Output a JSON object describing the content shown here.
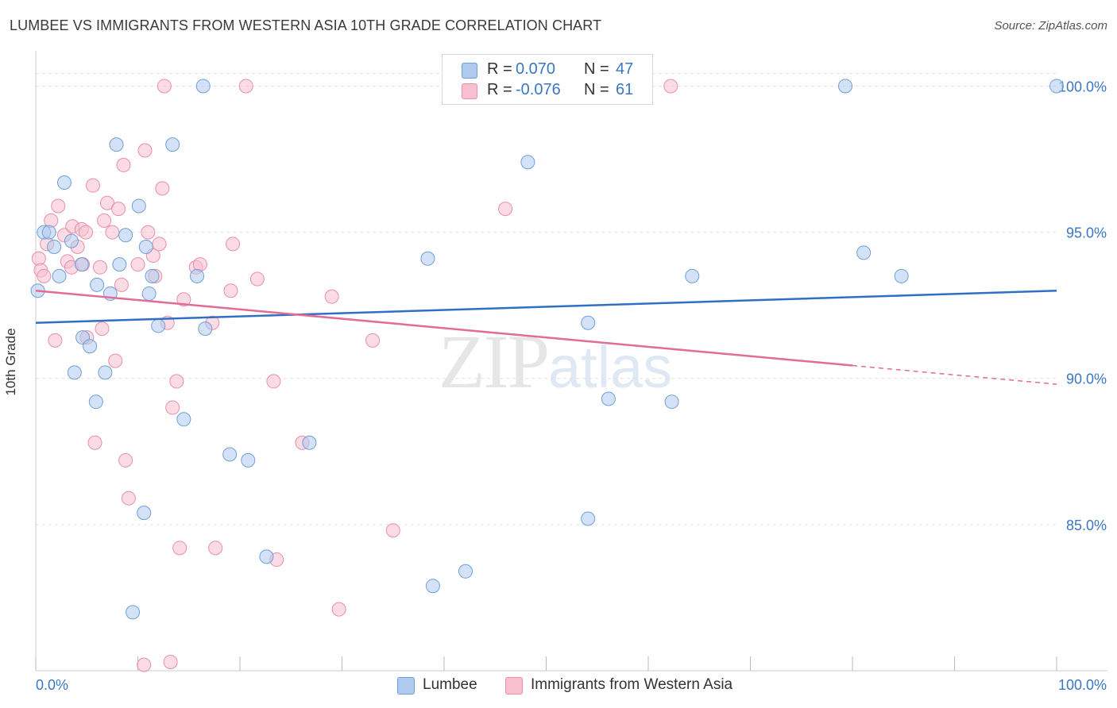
{
  "title": "LUMBEE VS IMMIGRANTS FROM WESTERN ASIA 10TH GRADE CORRELATION CHART",
  "source": "Source: ZipAtlas.com",
  "watermark": {
    "zip": "ZIP",
    "atlas": "atlas"
  },
  "legend": {
    "rows": [
      {
        "r_label": "R =",
        "r_value": "0.070",
        "n_label": "N =",
        "n_value": "47"
      },
      {
        "r_label": "R =",
        "r_value": "-0.076",
        "n_label": "N =",
        "n_value": "61"
      }
    ]
  },
  "bottom_legend": {
    "series_a": "Lumbee",
    "series_b": "Immigrants from Western Asia"
  },
  "colors": {
    "lumbee_fill": "#aecbef",
    "lumbee_stroke": "#6f9fd8",
    "lumbee_line": "#2f6fc4",
    "western_asia_fill": "#f7bfd0",
    "western_asia_stroke": "#ea8eaa",
    "western_asia_line": "#e36b95",
    "tick_label": "#3a76c4",
    "grid": "#e2e2e2"
  },
  "chart_data": {
    "type": "scatter",
    "title": "LUMBEE VS IMMIGRANTS FROM WESTERN ASIA 10TH GRADE CORRELATION CHART",
    "xlabel": "",
    "ylabel": "10th Grade",
    "xlim": [
      0,
      100
    ],
    "ylim": [
      80.0,
      100.8
    ],
    "x_tick_labels": [
      "0.0%",
      "100.0%"
    ],
    "y_ticks": [
      85,
      90,
      95,
      100
    ],
    "y_tick_labels": [
      "85.0%",
      "90.0%",
      "95.0%",
      "100.0%"
    ],
    "grid": true,
    "legend_position": "top-center",
    "series": [
      {
        "name": "Lumbee",
        "r": 0.07,
        "n": 47,
        "trend": {
          "x": [
            0,
            100
          ],
          "y": [
            91.9,
            93.0
          ],
          "dashed_from": null
        },
        "points": [
          [
            0.2,
            93.0
          ],
          [
            0.8,
            95.0
          ],
          [
            1.3,
            95.0
          ],
          [
            1.8,
            94.5
          ],
          [
            2.3,
            93.5
          ],
          [
            2.8,
            96.7
          ],
          [
            3.5,
            94.7
          ],
          [
            3.8,
            90.2
          ],
          [
            4.5,
            93.9
          ],
          [
            4.6,
            91.4
          ],
          [
            5.3,
            91.1
          ],
          [
            5.9,
            89.2
          ],
          [
            6.0,
            93.2
          ],
          [
            6.8,
            90.2
          ],
          [
            7.3,
            92.9
          ],
          [
            7.9,
            98.0
          ],
          [
            8.2,
            93.9
          ],
          [
            8.8,
            94.9
          ],
          [
            9.5,
            82.0
          ],
          [
            10.1,
            95.9
          ],
          [
            10.6,
            85.4
          ],
          [
            10.8,
            94.5
          ],
          [
            11.1,
            92.9
          ],
          [
            11.4,
            93.5
          ],
          [
            12.0,
            91.8
          ],
          [
            13.4,
            98.0
          ],
          [
            14.5,
            88.6
          ],
          [
            15.8,
            93.5
          ],
          [
            16.4,
            100.0
          ],
          [
            16.6,
            91.7
          ],
          [
            19.0,
            87.4
          ],
          [
            20.8,
            87.2
          ],
          [
            22.6,
            83.9
          ],
          [
            26.8,
            87.8
          ],
          [
            38.4,
            94.1
          ],
          [
            38.9,
            82.9
          ],
          [
            42.1,
            83.4
          ],
          [
            48.2,
            97.4
          ],
          [
            54.1,
            91.9
          ],
          [
            54.1,
            85.2
          ],
          [
            56.1,
            89.3
          ],
          [
            62.3,
            89.2
          ],
          [
            64.3,
            93.5
          ],
          [
            79.3,
            100.0
          ],
          [
            81.1,
            94.3
          ],
          [
            84.8,
            93.5
          ],
          [
            100.0,
            100.0
          ]
        ]
      },
      {
        "name": "Immigrants from Western Asia",
        "r": -0.076,
        "n": 61,
        "trend": {
          "x": [
            0,
            100
          ],
          "y": [
            93.0,
            89.8
          ],
          "dashed_from": 80
        },
        "points": [
          [
            0.3,
            94.1
          ],
          [
            0.5,
            93.7
          ],
          [
            0.8,
            93.5
          ],
          [
            1.1,
            94.6
          ],
          [
            1.5,
            95.4
          ],
          [
            1.9,
            91.3
          ],
          [
            2.2,
            95.9
          ],
          [
            2.8,
            94.9
          ],
          [
            3.1,
            94.0
          ],
          [
            3.5,
            93.8
          ],
          [
            3.6,
            95.2
          ],
          [
            4.1,
            94.5
          ],
          [
            4.5,
            95.1
          ],
          [
            4.6,
            93.9
          ],
          [
            4.9,
            95.0
          ],
          [
            5.0,
            91.4
          ],
          [
            5.6,
            96.6
          ],
          [
            5.8,
            87.8
          ],
          [
            6.3,
            93.8
          ],
          [
            6.5,
            91.7
          ],
          [
            6.7,
            95.4
          ],
          [
            7.0,
            96.0
          ],
          [
            7.5,
            95.0
          ],
          [
            7.8,
            90.6
          ],
          [
            8.1,
            95.8
          ],
          [
            8.4,
            93.2
          ],
          [
            8.6,
            97.3
          ],
          [
            8.8,
            87.2
          ],
          [
            9.1,
            85.9
          ],
          [
            10.0,
            93.9
          ],
          [
            10.6,
            80.2
          ],
          [
            10.7,
            97.8
          ],
          [
            11.0,
            95.0
          ],
          [
            11.5,
            94.2
          ],
          [
            11.7,
            93.5
          ],
          [
            12.1,
            94.6
          ],
          [
            12.4,
            96.5
          ],
          [
            12.6,
            100.0
          ],
          [
            12.9,
            91.9
          ],
          [
            13.2,
            80.3
          ],
          [
            13.4,
            89.0
          ],
          [
            13.8,
            89.9
          ],
          [
            14.1,
            84.2
          ],
          [
            14.5,
            92.7
          ],
          [
            15.7,
            93.8
          ],
          [
            16.1,
            93.9
          ],
          [
            17.3,
            91.9
          ],
          [
            17.6,
            84.2
          ],
          [
            19.1,
            93.0
          ],
          [
            19.3,
            94.6
          ],
          [
            20.6,
            100.0
          ],
          [
            21.7,
            93.4
          ],
          [
            23.3,
            89.9
          ],
          [
            23.6,
            83.8
          ],
          [
            26.1,
            87.8
          ],
          [
            29.0,
            92.8
          ],
          [
            29.7,
            82.1
          ],
          [
            35.0,
            84.8
          ],
          [
            62.2,
            100.0
          ],
          [
            46.0,
            95.8
          ],
          [
            33.0,
            91.3
          ]
        ]
      }
    ]
  }
}
